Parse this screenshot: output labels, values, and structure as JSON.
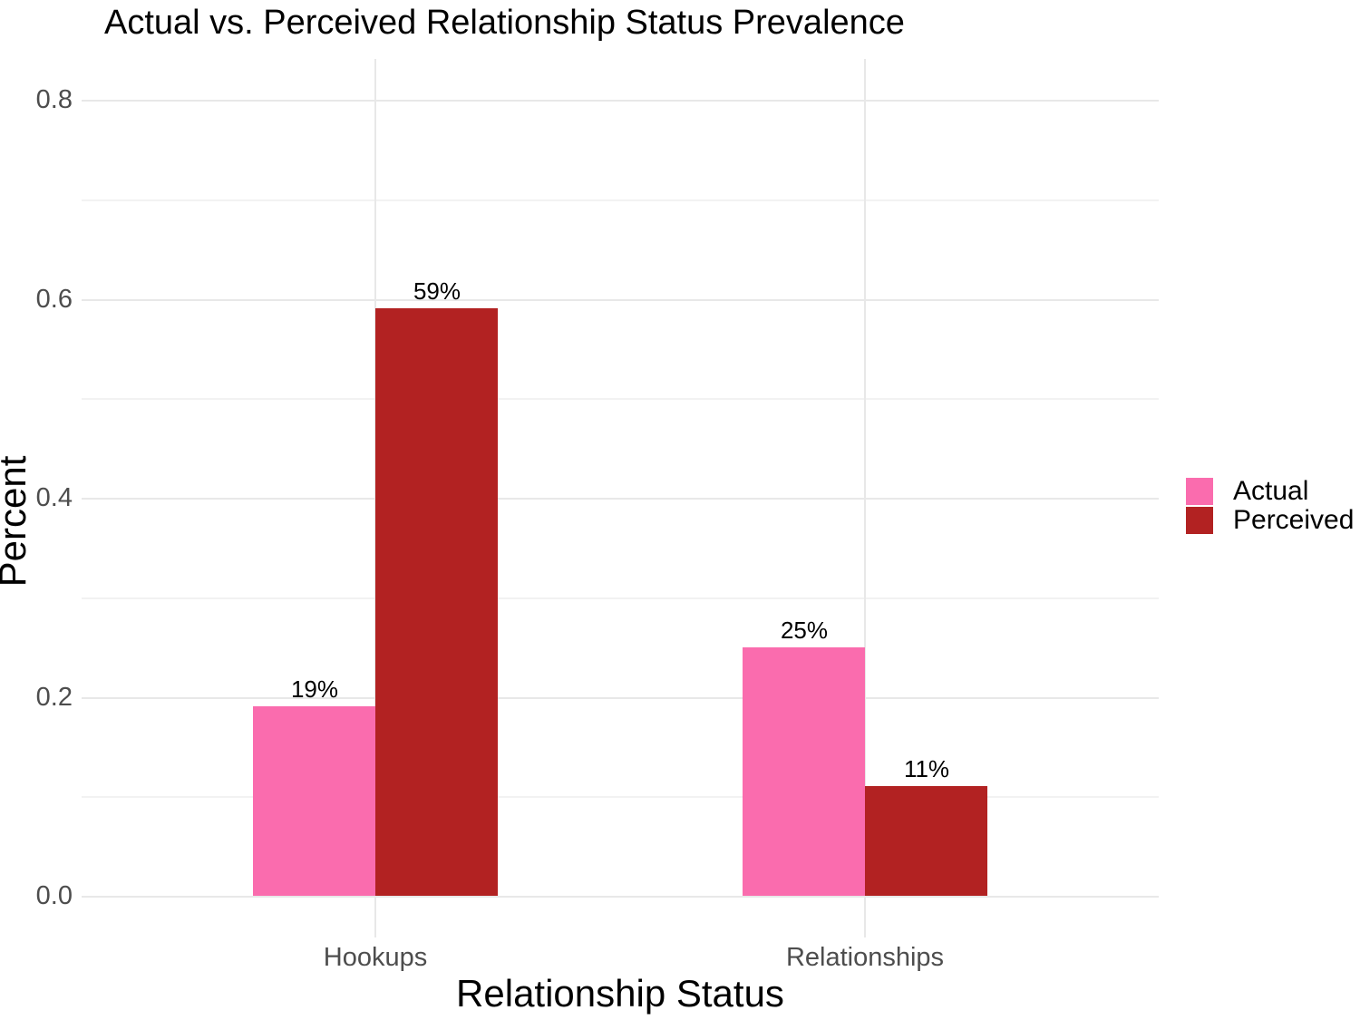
{
  "chart_data": {
    "type": "bar",
    "title": "Actual vs. Perceived Relationship Status Prevalence",
    "xlabel": "Relationship Status",
    "ylabel": "Percent",
    "categories": [
      "Hookups",
      "Relationships"
    ],
    "series": [
      {
        "name": "Actual",
        "color": "#fa6cae",
        "values": [
          0.19,
          0.25
        ],
        "labels": [
          "19%",
          "25%"
        ]
      },
      {
        "name": "Perceived",
        "color": "#b22222",
        "values": [
          0.59,
          0.11
        ],
        "labels": [
          "59%",
          "11%"
        ]
      }
    ],
    "y_ticks": [
      0.0,
      0.2,
      0.4,
      0.6,
      0.8
    ],
    "y_tick_labels": [
      "0.0",
      "0.2",
      "0.4",
      "0.6",
      "0.8"
    ],
    "y_minor_ticks": [
      0.1,
      0.3,
      0.5,
      0.7
    ],
    "ylim": [
      0,
      0.8
    ],
    "grid": true,
    "legend_position": "right",
    "panel_background": "#ffffff",
    "gridline_color": "#e8e8e8"
  }
}
